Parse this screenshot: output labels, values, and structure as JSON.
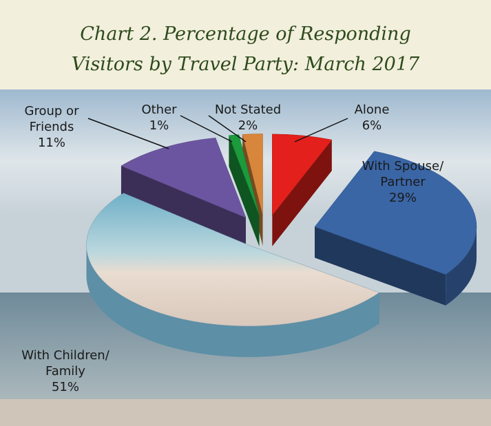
{
  "chart_data": {
    "type": "pie3d",
    "title": "Chart 2. Percentage of Responding Visitors by Travel Party: March 2017",
    "categories": [
      "Alone",
      "With Spouse/ Partner",
      "With Children/ Family",
      "Group or Friends",
      "Other",
      "Not Stated"
    ],
    "values": [
      6,
      29,
      51,
      11,
      1,
      2
    ],
    "value_labels": [
      "6%",
      "29%",
      "51%",
      "11%",
      "1%",
      "2%"
    ],
    "colors": [
      "#e3201b",
      "#3a66a6",
      "#9cc3d8",
      "#6c55a0",
      "#1c9a3c",
      "#d8863c"
    ]
  }
}
